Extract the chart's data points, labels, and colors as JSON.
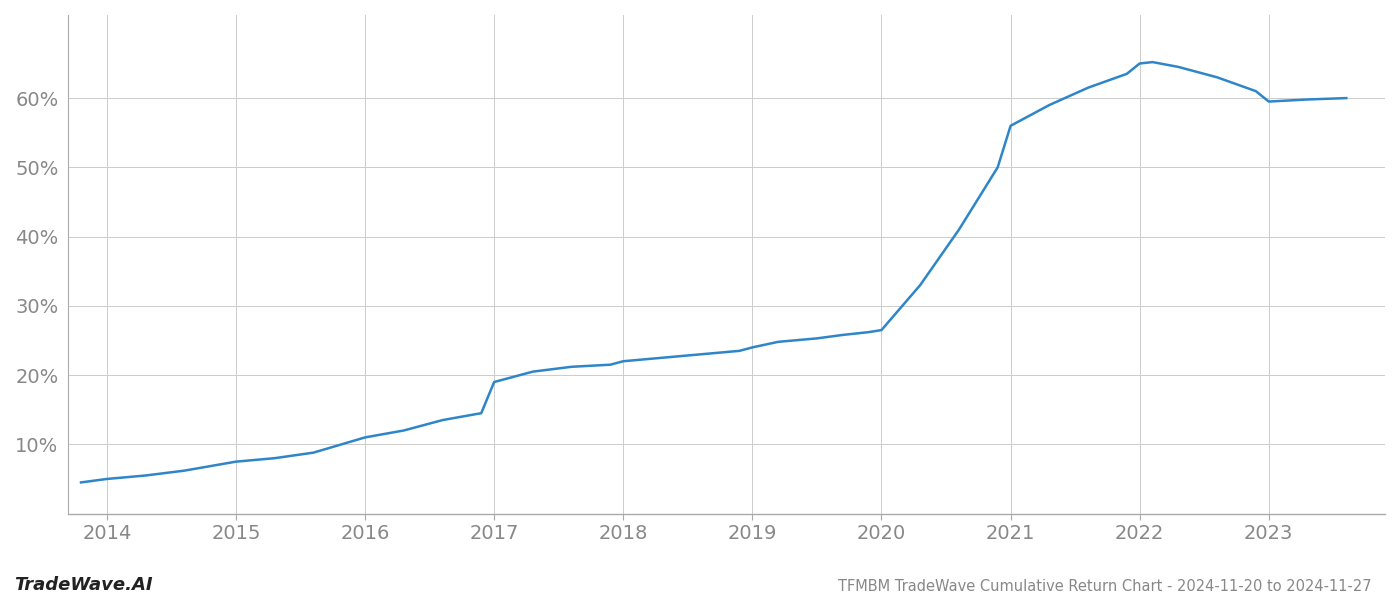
{
  "x_years": [
    2013.8,
    2014.0,
    2014.3,
    2014.6,
    2015.0,
    2015.3,
    2015.6,
    2016.0,
    2016.3,
    2016.6,
    2016.9,
    2017.0,
    2017.3,
    2017.6,
    2017.9,
    2018.0,
    2018.3,
    2018.6,
    2018.9,
    2019.0,
    2019.2,
    2019.5,
    2019.7,
    2019.9,
    2020.0,
    2020.3,
    2020.6,
    2020.9,
    2021.0,
    2021.3,
    2021.6,
    2021.9,
    2022.0,
    2022.1,
    2022.3,
    2022.6,
    2022.9,
    2023.0,
    2023.3,
    2023.6
  ],
  "y_values": [
    4.5,
    5.0,
    5.5,
    6.2,
    7.5,
    8.0,
    8.8,
    11.0,
    12.0,
    13.5,
    14.5,
    19.0,
    20.5,
    21.2,
    21.5,
    22.0,
    22.5,
    23.0,
    23.5,
    24.0,
    24.8,
    25.3,
    25.8,
    26.2,
    26.5,
    33.0,
    41.0,
    50.0,
    56.0,
    59.0,
    61.5,
    63.5,
    65.0,
    65.2,
    64.5,
    63.0,
    61.0,
    59.5,
    59.8,
    60.0
  ],
  "line_color": "#2e86c8",
  "line_width": 1.8,
  "background_color": "#ffffff",
  "grid_color": "#cccccc",
  "title": "TFMBM TradeWave Cumulative Return Chart - 2024-11-20 to 2024-11-27",
  "watermark": "TradeWave.AI",
  "ytick_labels": [
    "10%",
    "20%",
    "30%",
    "40%",
    "50%",
    "60%"
  ],
  "ytick_values": [
    10,
    20,
    30,
    40,
    50,
    60
  ],
  "xtick_labels": [
    "2014",
    "2015",
    "2016",
    "2017",
    "2018",
    "2019",
    "2020",
    "2021",
    "2022",
    "2023"
  ],
  "xtick_values": [
    2014,
    2015,
    2016,
    2017,
    2018,
    2019,
    2020,
    2021,
    2022,
    2023
  ],
  "xlim": [
    2013.7,
    2023.9
  ],
  "ylim": [
    0,
    72
  ],
  "title_fontsize": 10.5,
  "watermark_fontsize": 13,
  "ytick_fontsize": 14,
  "xtick_fontsize": 14,
  "tick_color": "#888888"
}
